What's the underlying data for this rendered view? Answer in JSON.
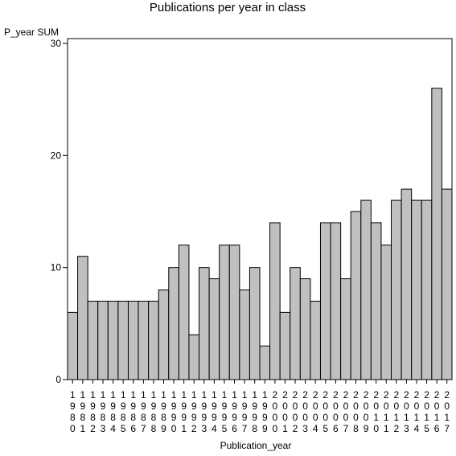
{
  "chart_data": {
    "type": "bar",
    "title": "Publications per year in class",
    "ylabel": "P_year SUM",
    "xlabel": "Publication_year",
    "categories": [
      "1980",
      "1981",
      "1982",
      "1983",
      "1984",
      "1985",
      "1986",
      "1987",
      "1988",
      "1989",
      "1990",
      "1991",
      "1992",
      "1993",
      "1994",
      "1995",
      "1996",
      "1997",
      "1998",
      "1999",
      "2000",
      "2001",
      "2002",
      "2003",
      "2004",
      "2005",
      "2006",
      "2007",
      "2008",
      "2009",
      "2010",
      "2011",
      "2012",
      "2013",
      "2014",
      "2015",
      "2016",
      "2017"
    ],
    "values": [
      6,
      11,
      7,
      7,
      7,
      7,
      7,
      7,
      7,
      8,
      10,
      12,
      4,
      10,
      9,
      12,
      12,
      8,
      10,
      3,
      14,
      6,
      10,
      9,
      7,
      14,
      14,
      9,
      15,
      16,
      14,
      12,
      16,
      17,
      16,
      16,
      26,
      17
    ],
    "ylim": [
      0,
      30
    ],
    "yticks": [
      0,
      10,
      20,
      30
    ],
    "grid": false,
    "legend": "none",
    "colors": {
      "bar_fill": "#c0c0c0",
      "bar_stroke": "#000000",
      "axis": "#000000"
    }
  }
}
